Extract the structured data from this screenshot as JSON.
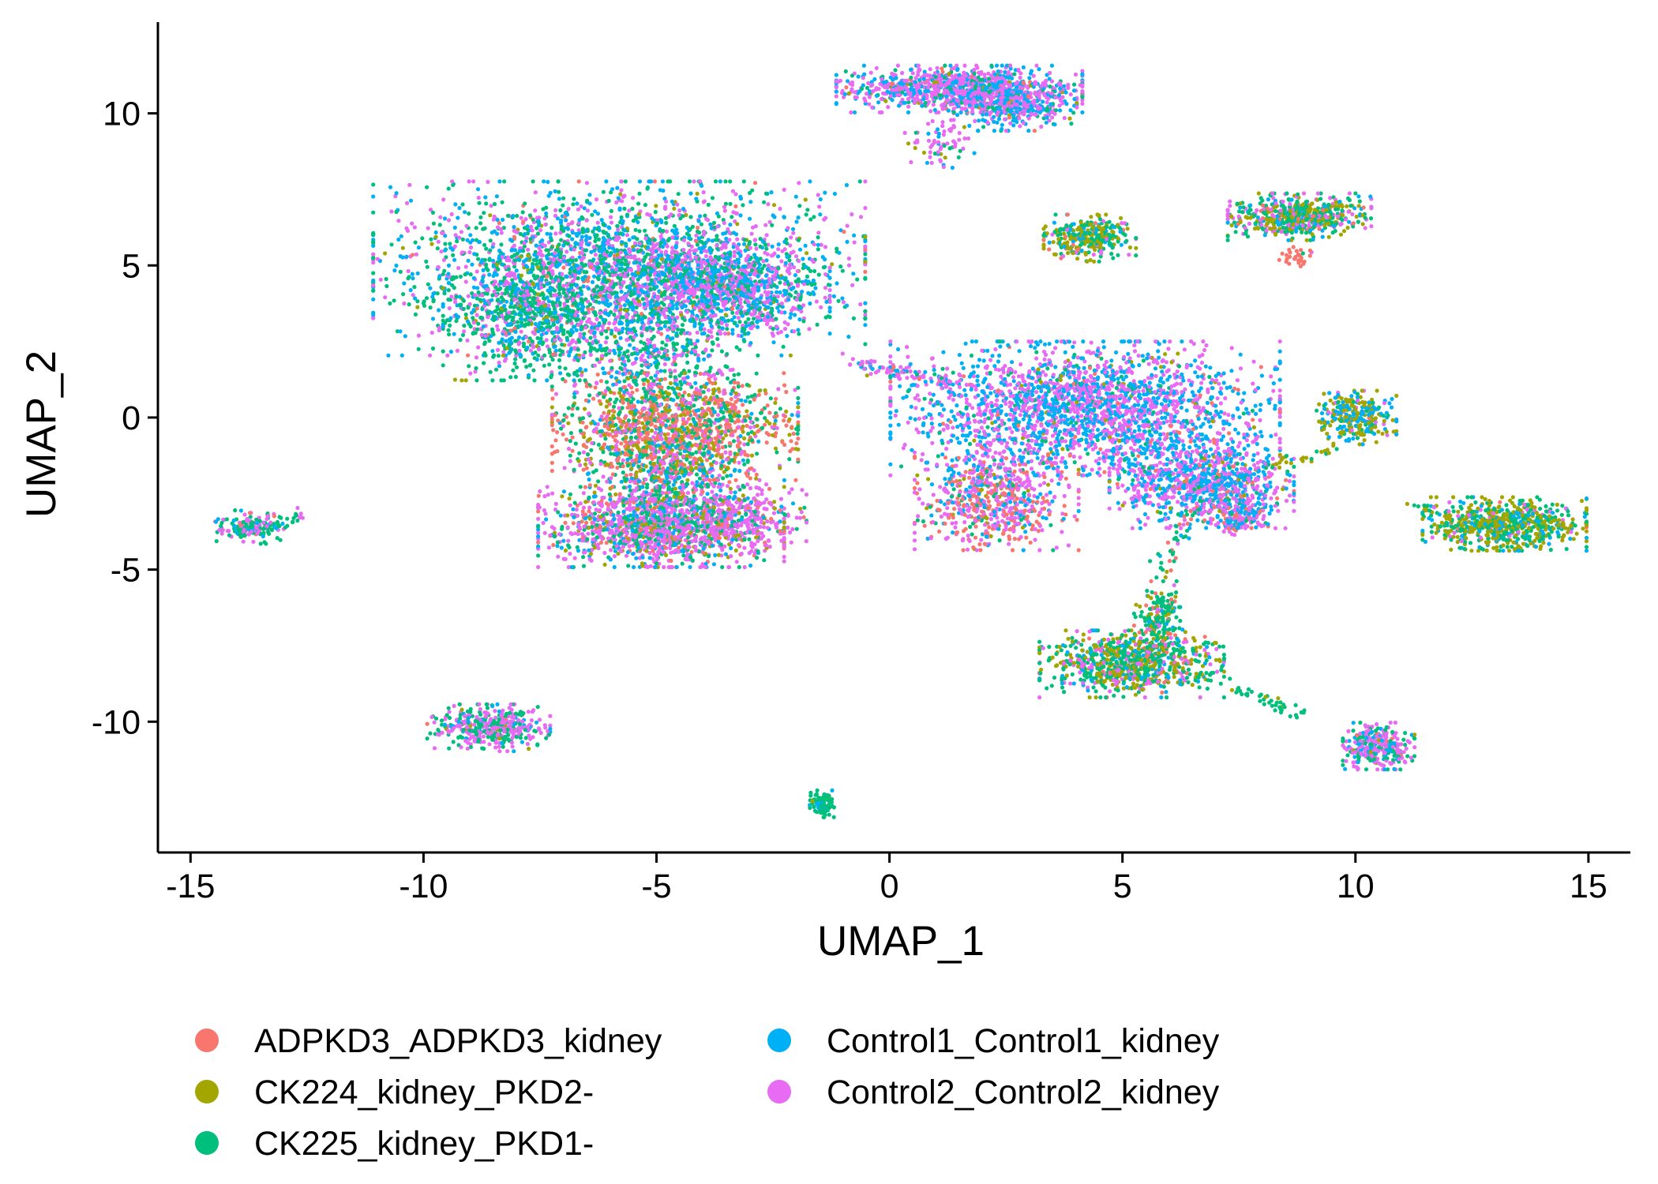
{
  "chart_data": {
    "type": "scatter",
    "title": "",
    "xlabel": "UMAP_1",
    "ylabel": "UMAP_2",
    "xlim": [
      -15.7,
      15.9
    ],
    "ylim": [
      -14.3,
      13.0
    ],
    "xticks": [
      -15,
      -10,
      -5,
      0,
      5,
      10,
      15
    ],
    "yticks": [
      -10,
      -5,
      0,
      5,
      10
    ],
    "xtick_labels": [
      "-15",
      "-10",
      "-5",
      "0",
      "5",
      "10",
      "15"
    ],
    "ytick_labels": [
      "-10",
      "-5",
      "0",
      "5",
      "10"
    ],
    "grid": false,
    "legend_position": "bottom",
    "series": [
      {
        "name": "ADPKD3_ADPKD3_kidney",
        "color": "#F8766D"
      },
      {
        "name": "CK224_kidney_PKD2-",
        "color": "#A3A500"
      },
      {
        "name": "CK225_kidney_PKD1-",
        "color": "#00BF7D"
      },
      {
        "name": "Control1_Control1_kidney",
        "color": "#00B0F6"
      },
      {
        "name": "Control2_Control2_kidney",
        "color": "#E76BF3"
      }
    ],
    "clusters": [
      {
        "cx": -5.8,
        "cy": 4.9,
        "sx": 2.4,
        "sy": 1.3,
        "n": 2600,
        "w": [
          0.02,
          0.03,
          0.33,
          0.3,
          0.32
        ]
      },
      {
        "cx": -7.6,
        "cy": 3.2,
        "sx": 0.9,
        "sy": 0.9,
        "n": 700,
        "w": [
          0.02,
          0.03,
          0.55,
          0.18,
          0.22
        ]
      },
      {
        "cx": -3.7,
        "cy": 4.3,
        "sx": 1.1,
        "sy": 0.7,
        "n": 900,
        "w": [
          0.01,
          0.02,
          0.12,
          0.4,
          0.45
        ]
      },
      {
        "cx": -5.0,
        "cy": 1.8,
        "sx": 0.8,
        "sy": 0.9,
        "n": 400,
        "w": [
          0.04,
          0.05,
          0.45,
          0.2,
          0.26
        ]
      },
      {
        "cx": -4.6,
        "cy": -0.3,
        "sx": 1.2,
        "sy": 0.8,
        "n": 1200,
        "w": [
          0.4,
          0.2,
          0.2,
          0.05,
          0.15
        ]
      },
      {
        "cx": -4.8,
        "cy": -1.9,
        "sx": 0.8,
        "sy": 0.7,
        "n": 500,
        "w": [
          0.15,
          0.15,
          0.3,
          0.15,
          0.25
        ]
      },
      {
        "cx": -4.9,
        "cy": -3.6,
        "sx": 1.2,
        "sy": 0.6,
        "n": 1400,
        "w": [
          0.08,
          0.07,
          0.2,
          0.15,
          0.5
        ]
      },
      {
        "cx": -3.1,
        "cy": -3.3,
        "sx": 0.6,
        "sy": 0.5,
        "n": 200,
        "w": [
          0.05,
          0.05,
          0.1,
          0.1,
          0.7
        ]
      },
      {
        "cx": 1.5,
        "cy": 10.8,
        "sx": 1.2,
        "sy": 0.35,
        "n": 1000,
        "w": [
          0.02,
          0.03,
          0.1,
          0.3,
          0.55
        ]
      },
      {
        "cx": 2.7,
        "cy": 10.2,
        "sx": 0.6,
        "sy": 0.35,
        "n": 350,
        "w": [
          0.02,
          0.02,
          0.1,
          0.4,
          0.46
        ]
      },
      {
        "cx": 1.1,
        "cy": 9.0,
        "sx": 0.35,
        "sy": 0.4,
        "n": 70,
        "w": [
          0.05,
          0.05,
          0.15,
          0.15,
          0.6
        ]
      },
      {
        "cx": 4.3,
        "cy": 5.9,
        "sx": 0.45,
        "sy": 0.35,
        "n": 320,
        "w": [
          0.03,
          0.4,
          0.35,
          0.15,
          0.07
        ]
      },
      {
        "cx": 8.8,
        "cy": 6.6,
        "sx": 0.7,
        "sy": 0.35,
        "n": 550,
        "w": [
          0.05,
          0.25,
          0.35,
          0.15,
          0.2
        ]
      },
      {
        "cx": 8.7,
        "cy": 5.3,
        "sx": 0.18,
        "sy": 0.15,
        "n": 30,
        "w": [
          0.9,
          0.0,
          0.05,
          0.0,
          0.05
        ]
      },
      {
        "cx": 4.2,
        "cy": 0.3,
        "sx": 1.9,
        "sy": 1.0,
        "n": 2200,
        "w": [
          0.03,
          0.02,
          0.05,
          0.45,
          0.45
        ]
      },
      {
        "cx": 6.7,
        "cy": -2.1,
        "sx": 0.9,
        "sy": 0.7,
        "n": 900,
        "w": [
          0.04,
          0.02,
          0.04,
          0.45,
          0.45
        ]
      },
      {
        "cx": 2.3,
        "cy": -2.6,
        "sx": 0.8,
        "sy": 0.8,
        "n": 700,
        "w": [
          0.28,
          0.04,
          0.05,
          0.2,
          0.43
        ]
      },
      {
        "cx": 7.5,
        "cy": -3.2,
        "sx": 0.35,
        "sy": 0.3,
        "n": 180,
        "w": [
          0.15,
          0.05,
          0.1,
          0.3,
          0.4
        ]
      },
      {
        "cx": 10.0,
        "cy": 0.0,
        "sx": 0.4,
        "sy": 0.4,
        "n": 280,
        "w": [
          0.02,
          0.45,
          0.1,
          0.35,
          0.08
        ]
      },
      {
        "cx": 13.2,
        "cy": -3.5,
        "sx": 0.8,
        "sy": 0.4,
        "n": 650,
        "w": [
          0.01,
          0.45,
          0.3,
          0.2,
          0.04
        ]
      },
      {
        "cx": 5.2,
        "cy": -8.1,
        "sx": 0.9,
        "sy": 0.5,
        "n": 800,
        "w": [
          0.05,
          0.3,
          0.4,
          0.1,
          0.15
        ]
      },
      {
        "cx": 5.8,
        "cy": -6.7,
        "sx": 0.25,
        "sy": 0.6,
        "n": 200,
        "w": [
          0.15,
          0.15,
          0.55,
          0.05,
          0.1
        ]
      },
      {
        "cx": 10.5,
        "cy": -10.8,
        "sx": 0.35,
        "sy": 0.35,
        "n": 320,
        "w": [
          0.02,
          0.03,
          0.3,
          0.15,
          0.5
        ]
      },
      {
        "cx": -8.6,
        "cy": -10.2,
        "sx": 0.6,
        "sy": 0.35,
        "n": 420,
        "w": [
          0.01,
          0.02,
          0.35,
          0.12,
          0.5
        ]
      },
      {
        "cx": -13.7,
        "cy": -3.6,
        "sx": 0.35,
        "sy": 0.25,
        "n": 160,
        "w": [
          0.02,
          0.02,
          0.45,
          0.1,
          0.41
        ]
      },
      {
        "cx": -1.4,
        "cy": -12.7,
        "sx": 0.16,
        "sy": 0.2,
        "n": 90,
        "w": [
          0.0,
          0.05,
          0.8,
          0.15,
          0.0
        ]
      }
    ],
    "trails": [
      {
        "x0": -0.8,
        "y0": 1.8,
        "x1": 1.4,
        "y1": 1.1,
        "n": 90,
        "spread": 0.12,
        "w": [
          0.05,
          0.05,
          0.05,
          0.25,
          0.6
        ]
      },
      {
        "x0": 5.8,
        "y0": -5.2,
        "x1": 6.5,
        "y1": -3.0,
        "n": 40,
        "spread": 0.12,
        "w": [
          0.2,
          0.05,
          0.6,
          0.1,
          0.05
        ]
      },
      {
        "x0": 6.5,
        "y0": -8.3,
        "x1": 8.8,
        "y1": -9.8,
        "n": 55,
        "spread": 0.12,
        "w": [
          0.0,
          0.1,
          0.8,
          0.1,
          0.0
        ]
      },
      {
        "x0": 8.0,
        "y0": -1.7,
        "x1": 9.6,
        "y1": -1.0,
        "n": 30,
        "spread": 0.1,
        "w": [
          0.0,
          0.7,
          0.3,
          0.0,
          0.0
        ]
      },
      {
        "x0": 11.2,
        "y0": -2.9,
        "x1": 12.3,
        "y1": -3.3,
        "n": 25,
        "spread": 0.1,
        "w": [
          0.0,
          0.7,
          0.3,
          0.0,
          0.0
        ]
      },
      {
        "x0": -13.3,
        "y0": -3.6,
        "x1": -12.5,
        "y1": -3.1,
        "n": 20,
        "spread": 0.1,
        "w": [
          0.0,
          0.0,
          0.7,
          0.0,
          0.3
        ]
      },
      {
        "x0": -2.8,
        "y0": 3.4,
        "x1": -2.2,
        "y1": 2.9,
        "n": 15,
        "spread": 0.1,
        "w": [
          0.0,
          0.0,
          0.0,
          0.0,
          1.0
        ]
      }
    ]
  }
}
